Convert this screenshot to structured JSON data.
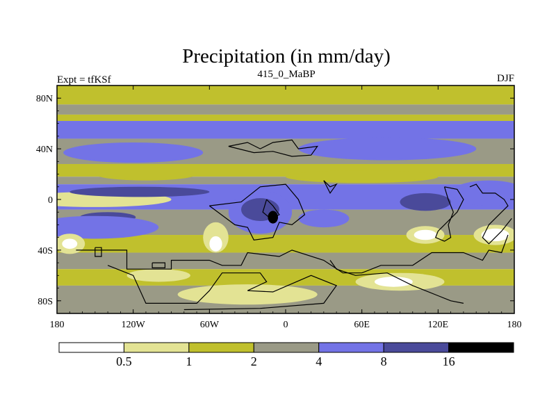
{
  "chart_data": {
    "type": "heatmap",
    "title": "Precipitation (in mm/day)",
    "subtitle_left": "Expt = tfKSf",
    "subtitle_center": "415_0_MaBP",
    "subtitle_right": "DJF",
    "x_ticks": [
      {
        "value": -180,
        "label": "180"
      },
      {
        "value": -120,
        "label": "120W"
      },
      {
        "value": -60,
        "label": "60W"
      },
      {
        "value": 0,
        "label": "0"
      },
      {
        "value": 60,
        "label": "60E"
      },
      {
        "value": 120,
        "label": "120E"
      },
      {
        "value": 180,
        "label": "180"
      }
    ],
    "y_ticks": [
      {
        "value": 80,
        "label": "80N"
      },
      {
        "value": 40,
        "label": "40N"
      },
      {
        "value": 0,
        "label": "0"
      },
      {
        "value": -40,
        "label": "40S"
      },
      {
        "value": -80,
        "label": "80S"
      }
    ],
    "xlim": [
      -180,
      180
    ],
    "ylim": [
      -90,
      90
    ],
    "colorbar": {
      "levels": [
        "0.5",
        "1",
        "2",
        "4",
        "8",
        "16"
      ],
      "colors": [
        "#ffffff",
        "#e3e394",
        "#c0c02d",
        "#9a9a86",
        "#7373e6",
        "#4a4a9a",
        "#000000"
      ]
    },
    "zonal_bands": [
      {
        "lat_min": 75,
        "lat_max": 90,
        "level": 2
      },
      {
        "lat_min": 67,
        "lat_max": 75,
        "level": 3
      },
      {
        "lat_min": 62,
        "lat_max": 67,
        "level": 2
      },
      {
        "lat_min": 48,
        "lat_max": 62,
        "level": 4
      },
      {
        "lat_min": 28,
        "lat_max": 48,
        "level": 3
      },
      {
        "lat_min": 18,
        "lat_max": 28,
        "level": 2
      },
      {
        "lat_min": 12,
        "lat_max": 18,
        "level": 3
      },
      {
        "lat_min": -8,
        "lat_max": 12,
        "level": 4
      },
      {
        "lat_min": -28,
        "lat_max": -8,
        "level": 3
      },
      {
        "lat_min": -42,
        "lat_max": -28,
        "level": 2
      },
      {
        "lat_min": -55,
        "lat_max": -42,
        "level": 3
      },
      {
        "lat_min": -68,
        "lat_max": -55,
        "level": 2
      },
      {
        "lat_min": -90,
        "lat_max": -68,
        "level": 3
      }
    ],
    "anomalies": [
      {
        "lon": -120,
        "lat": 37,
        "rx": 55,
        "ry": 8,
        "level": 4
      },
      {
        "lon": 80,
        "lat": 40,
        "rx": 70,
        "ry": 9,
        "level": 4
      },
      {
        "lon": -110,
        "lat": 20,
        "rx": 40,
        "ry": 5,
        "level": 2
      },
      {
        "lon": 60,
        "lat": 18,
        "rx": 60,
        "ry": 5,
        "level": 2
      },
      {
        "lon": -150,
        "lat": 0,
        "rx": 35,
        "ry": 3,
        "level": 0
      },
      {
        "lon": -150,
        "lat": 0,
        "rx": 60,
        "ry": 6,
        "level": 1
      },
      {
        "lon": -115,
        "lat": 6,
        "rx": 55,
        "ry": 4,
        "level": 5
      },
      {
        "lon": -140,
        "lat": -14,
        "rx": 22,
        "ry": 4,
        "level": 5
      },
      {
        "lon": -150,
        "lat": -22,
        "rx": 50,
        "ry": 9,
        "level": 4
      },
      {
        "lon": -20,
        "lat": -10,
        "rx": 25,
        "ry": 17,
        "level": 4
      },
      {
        "lon": -20,
        "lat": -8,
        "rx": 15,
        "ry": 9,
        "level": 5
      },
      {
        "lon": -10,
        "lat": -14,
        "rx": 4,
        "ry": 5,
        "level": 6
      },
      {
        "lon": 30,
        "lat": -15,
        "rx": 20,
        "ry": 7,
        "level": 4
      },
      {
        "lon": 110,
        "lat": -2,
        "rx": 20,
        "ry": 7,
        "level": 5
      },
      {
        "lon": 160,
        "lat": 5,
        "rx": 30,
        "ry": 10,
        "level": 4
      },
      {
        "lon": 110,
        "lat": -28,
        "rx": 15,
        "ry": 7,
        "level": 1
      },
      {
        "lon": 110,
        "lat": -28,
        "rx": 9,
        "ry": 4,
        "level": 0
      },
      {
        "lon": 165,
        "lat": -28,
        "rx": 17,
        "ry": 8,
        "level": 1
      },
      {
        "lon": 165,
        "lat": -28,
        "rx": 11,
        "ry": 5,
        "level": 0
      },
      {
        "lon": -55,
        "lat": -30,
        "rx": 10,
        "ry": 12,
        "level": 1
      },
      {
        "lon": -55,
        "lat": -35,
        "rx": 5,
        "ry": 6,
        "level": 0
      },
      {
        "lon": -170,
        "lat": -35,
        "rx": 12,
        "ry": 8,
        "level": 1
      },
      {
        "lon": -170,
        "lat": -35,
        "rx": 6,
        "ry": 4,
        "level": 0
      },
      {
        "lon": -30,
        "lat": -75,
        "rx": 55,
        "ry": 8,
        "level": 1
      },
      {
        "lon": 90,
        "lat": -65,
        "rx": 35,
        "ry": 7,
        "level": 1
      },
      {
        "lon": 85,
        "lat": -65,
        "rx": 15,
        "ry": 4,
        "level": 0
      },
      {
        "lon": -100,
        "lat": -60,
        "rx": 25,
        "ry": 5,
        "level": 1
      }
    ],
    "coastlines": [
      [
        [
          -165,
          -40
        ],
        [
          -125,
          -40
        ],
        [
          -125,
          -55
        ],
        [
          -90,
          -55
        ],
        [
          -90,
          -48
        ],
        [
          -60,
          -48
        ],
        [
          -50,
          -52
        ],
        [
          -35,
          -52
        ],
        [
          -30,
          -42
        ],
        [
          -5,
          -45
        ],
        [
          5,
          -40
        ],
        [
          30,
          -48
        ],
        [
          45,
          -58
        ],
        [
          60,
          -58
        ],
        [
          75,
          -52
        ],
        [
          100,
          -52
        ],
        [
          115,
          -42
        ],
        [
          140,
          -42
        ],
        [
          155,
          -48
        ],
        [
          160,
          -40
        ],
        [
          170,
          -42
        ],
        [
          175,
          -28
        ]
      ],
      [
        [
          -140,
          -52
        ],
        [
          -120,
          -60
        ],
        [
          -110,
          -82
        ],
        [
          -70,
          -82
        ],
        [
          -60,
          -72
        ],
        [
          -50,
          -58
        ],
        [
          -20,
          -58
        ],
        [
          -15,
          -65
        ],
        [
          -30,
          -72
        ],
        [
          -10,
          -73
        ],
        [
          20,
          -60
        ],
        [
          40,
          -68
        ],
        [
          30,
          -82
        ],
        [
          -20,
          -86
        ],
        [
          -80,
          -87
        ]
      ],
      [
        [
          35,
          -48
        ],
        [
          40,
          -55
        ],
        [
          55,
          -60
        ],
        [
          80,
          -58
        ],
        [
          100,
          -68
        ],
        [
          110,
          -72
        ],
        [
          120,
          -76
        ],
        [
          130,
          -80
        ],
        [
          140,
          -82
        ]
      ],
      [
        [
          -60,
          -5
        ],
        [
          -35,
          -2
        ],
        [
          -20,
          10
        ],
        [
          0,
          12
        ],
        [
          10,
          0
        ],
        [
          15,
          -12
        ],
        [
          5,
          -20
        ],
        [
          -5,
          -18
        ],
        [
          -10,
          -30
        ],
        [
          -25,
          -32
        ],
        [
          -30,
          -22
        ],
        [
          -40,
          -20
        ],
        [
          -60,
          -5
        ]
      ],
      [
        [
          -15,
          0
        ],
        [
          -10,
          -5
        ],
        [
          -5,
          -12
        ],
        [
          -12,
          -15
        ],
        [
          -18,
          -10
        ],
        [
          -15,
          0
        ]
      ],
      [
        [
          -45,
          42
        ],
        [
          -30,
          45
        ],
        [
          -20,
          40
        ],
        [
          -10,
          45
        ],
        [
          5,
          47
        ],
        [
          10,
          40
        ],
        [
          25,
          42
        ],
        [
          20,
          35
        ],
        [
          5,
          34
        ],
        [
          -10,
          38
        ],
        [
          -25,
          37
        ],
        [
          -45,
          42
        ]
      ],
      [
        [
          30,
          15
        ],
        [
          35,
          10
        ],
        [
          40,
          12
        ],
        [
          35,
          5
        ],
        [
          30,
          15
        ]
      ],
      [
        [
          125,
          10
        ],
        [
          135,
          8
        ],
        [
          140,
          0
        ],
        [
          135,
          -10
        ],
        [
          125,
          -20
        ],
        [
          120,
          -25
        ],
        [
          118,
          -30
        ],
        [
          125,
          -33
        ],
        [
          130,
          -30
        ],
        [
          128,
          -20
        ],
        [
          132,
          -10
        ],
        [
          128,
          0
        ],
        [
          125,
          10
        ]
      ],
      [
        [
          145,
          10
        ],
        [
          150,
          12
        ],
        [
          155,
          5
        ],
        [
          165,
          5
        ],
        [
          172,
          0
        ],
        [
          175,
          -5
        ],
        [
          170,
          -10
        ],
        [
          160,
          -20
        ],
        [
          155,
          -30
        ],
        [
          160,
          -35
        ],
        [
          170,
          -25
        ],
        [
          178,
          -15
        ]
      ],
      [
        [
          -150,
          -38
        ],
        [
          -145,
          -38
        ],
        [
          -145,
          -45
        ],
        [
          -150,
          -45
        ],
        [
          -150,
          -38
        ]
      ],
      [
        [
          -105,
          -50
        ],
        [
          -95,
          -50
        ],
        [
          -95,
          -54
        ],
        [
          -105,
          -54
        ],
        [
          -105,
          -50
        ]
      ]
    ]
  }
}
